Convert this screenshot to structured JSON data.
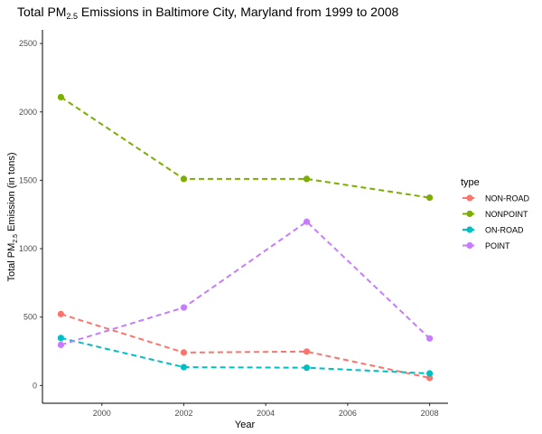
{
  "chart_data": {
    "type": "line",
    "title_main": "Total PM",
    "title_sub": "2.5",
    "title_rest": " Emissions in Baltimore City, Maryland from 1999 to 2008",
    "xlabel": "Year",
    "ylabel_main": "Total PM",
    "ylabel_sub": "2.5",
    "ylabel_rest": " Emission (in tons)",
    "x": [
      1999,
      2002,
      2005,
      2008
    ],
    "xlim": [
      1998.55,
      2008.45
    ],
    "ylim": [
      -130,
      2600
    ],
    "xticks": [
      "2000",
      "2002",
      "2004",
      "2006",
      "2008"
    ],
    "yticks": [
      "0",
      "500",
      "1000",
      "1500",
      "2000",
      "2500"
    ],
    "grid": false,
    "legend_title": "type",
    "legend_position": "right",
    "series": [
      {
        "name": "NON-ROAD",
        "color": "#F8766D",
        "values": [
          522,
          241,
          248,
          55
        ]
      },
      {
        "name": "NONPOINT",
        "color": "#7CAE00",
        "values": [
          2108,
          1510,
          1510,
          1373
        ]
      },
      {
        "name": "ON-ROAD",
        "color": "#00BFC4",
        "values": [
          347,
          134,
          130,
          88
        ]
      },
      {
        "name": "POINT",
        "color": "#C77CFF",
        "values": [
          297,
          570,
          1197,
          344
        ]
      }
    ]
  }
}
